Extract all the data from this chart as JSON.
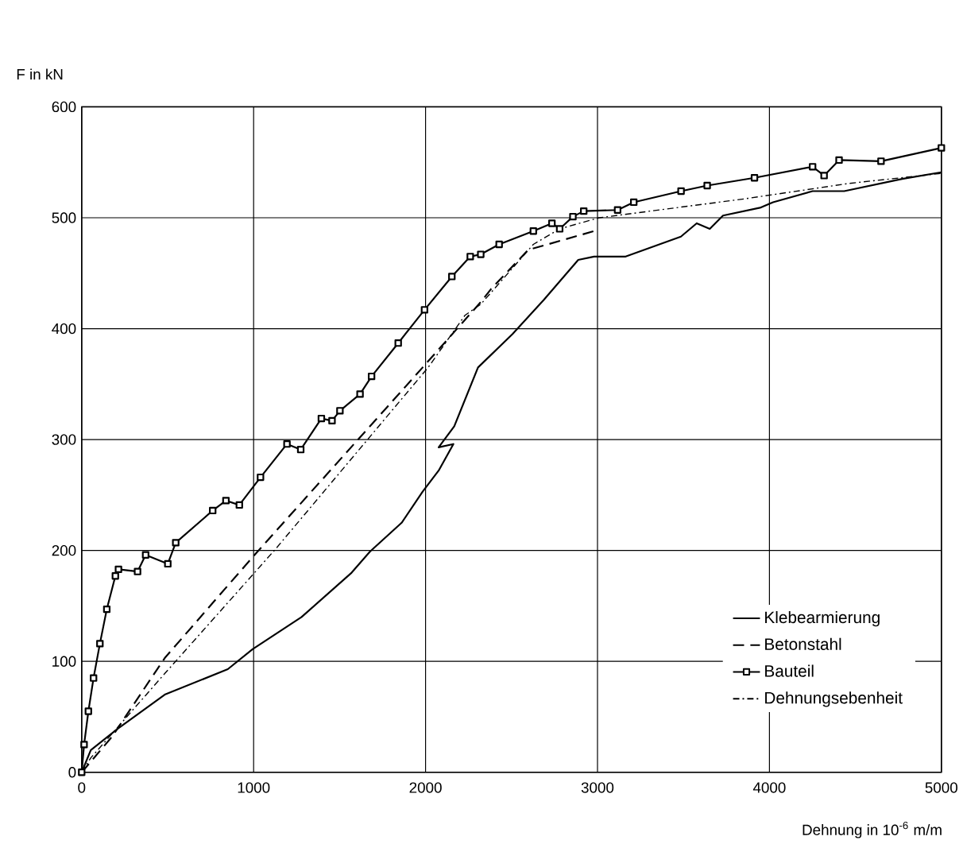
{
  "chart_data": {
    "type": "line",
    "xlabel": "Dehnung in 10$^{-6}$ m/m",
    "ylabel": "F  in kN",
    "xlim": [
      0,
      5000
    ],
    "ylim": [
      0,
      600
    ],
    "xticks": [
      0,
      1000,
      2000,
      3000,
      4000,
      5000
    ],
    "yticks": [
      0,
      100,
      200,
      300,
      400,
      500,
      600
    ],
    "grid": true,
    "legend": "bottom right",
    "series": [
      {
        "name": "Klebearmierung",
        "color": "#000000",
        "line_style": "solid",
        "marker": "none",
        "x": [
          0,
          53,
          207,
          483,
          850,
          994,
          1279,
          1570,
          1677,
          1861,
          1983,
          2076,
          2162,
          2076,
          2167,
          2305,
          2505,
          2688,
          2888,
          2980,
          3164,
          3485,
          3577,
          3653,
          3730,
          3945,
          4021,
          4251,
          4435,
          4772,
          5000
        ],
        "values": [
          0,
          20,
          39,
          70,
          93,
          111,
          140,
          180,
          199,
          225,
          253,
          272,
          296,
          293,
          312,
          365,
          395,
          426,
          462,
          465,
          465,
          483,
          495,
          490,
          502,
          509,
          514,
          524,
          524,
          535,
          541
        ]
      },
      {
        "name": "Betonstahl",
        "color": "#000000",
        "line_style": "dashed",
        "marker": "none",
        "x": [
          0,
          176,
          483,
          994,
          1983,
          2321,
          2382,
          2597,
          2688,
          2980
        ],
        "values": [
          0,
          32,
          103,
          194,
          365,
          424,
          436,
          471,
          475,
          488
        ]
      },
      {
        "name": "Bauteil",
        "color": "#000000",
        "line_style": "solid",
        "marker": "square",
        "x": [
          0,
          14,
          39,
          69,
          106,
          146,
          196,
          214,
          325,
          372,
          501,
          547,
          762,
          839,
          917,
          1040,
          1194,
          1274,
          1394,
          1456,
          1502,
          1619,
          1686,
          1841,
          1994,
          2153,
          2260,
          2321,
          2428,
          2627,
          2735,
          2780,
          2857,
          2920,
          3117,
          3211,
          3486,
          3638,
          3913,
          4251,
          4318,
          4405,
          4649,
          5000
        ],
        "values": [
          0,
          25,
          55,
          85,
          116,
          147,
          177,
          183,
          181,
          196,
          188,
          207,
          236,
          245,
          241,
          266,
          296,
          291,
          319,
          317,
          326,
          341,
          357,
          387,
          417,
          447,
          465,
          467,
          476,
          488,
          495,
          490,
          501,
          506,
          507,
          514,
          524,
          529,
          536,
          546,
          538,
          552,
          551,
          563
        ]
      },
      {
        "name": "Dehnungsebenheit",
        "color": "#000000",
        "line_style": "dashdot",
        "marker": "none",
        "x": [
          0,
          53,
          483,
          1126,
          2015,
          2229,
          2321,
          2627,
          2780,
          3010,
          3853,
          4465,
          5000
        ],
        "values": [
          0,
          13,
          89,
          201,
          365,
          412,
          422,
          476,
          490,
          500,
          517,
          531,
          540
        ]
      }
    ]
  }
}
